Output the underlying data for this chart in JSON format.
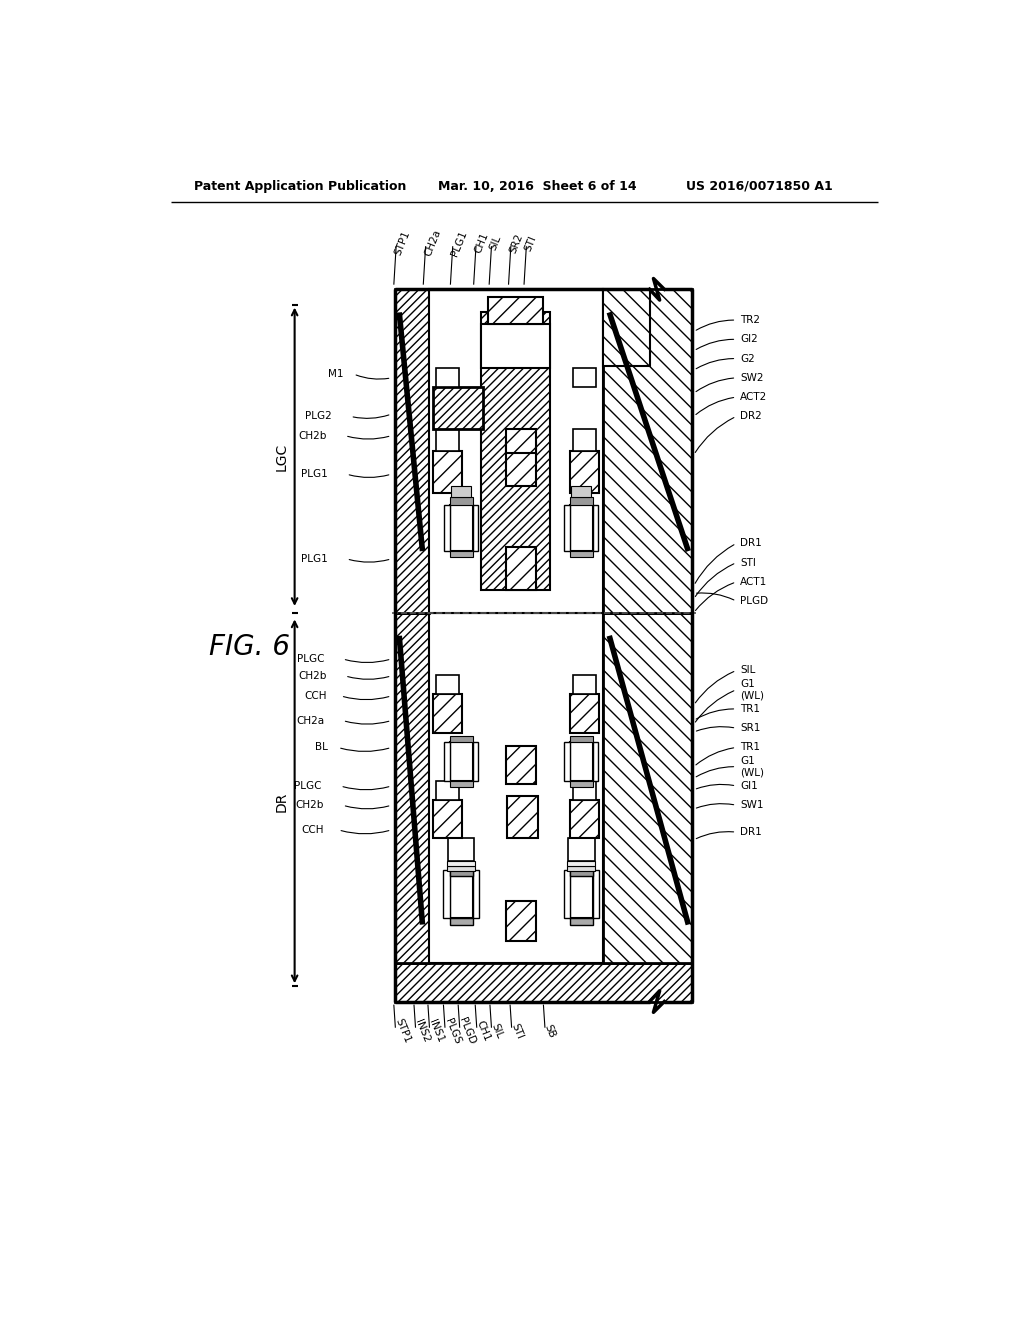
{
  "bg_color": "#ffffff",
  "header_left": "Patent Application Publication",
  "header_center": "Mar. 10, 2016  Sheet 6 of 14",
  "header_right": "US 2016/0071850 A1",
  "fig_label": "FIG. 6",
  "top_labels": [
    "STP1",
    "CH2a",
    "PLG1",
    "CH1",
    "SIL",
    "SR2",
    "STI"
  ],
  "top_lx": [
    342,
    380,
    415,
    445,
    465,
    490,
    510
  ],
  "bot_labels": [
    "STP1",
    "INS2",
    "INS1",
    "PLGS",
    "PLGD",
    "CH1",
    "SIL",
    "STI",
    "SB"
  ],
  "bot_lx": [
    342,
    368,
    386,
    406,
    425,
    447,
    466,
    492,
    535
  ],
  "left_labels_upper": [
    [
      "M1",
      340,
      1035,
      280,
      1040
    ],
    [
      "PLG2",
      340,
      988,
      265,
      985
    ],
    [
      "CH2b",
      340,
      960,
      258,
      960
    ],
    [
      "PLG1",
      340,
      910,
      260,
      910
    ],
    [
      "PLG1",
      340,
      800,
      260,
      800
    ]
  ],
  "left_labels_lower": [
    [
      "PLGC",
      340,
      670,
      255,
      670
    ],
    [
      "CH2b",
      340,
      648,
      258,
      648
    ],
    [
      "CCH",
      340,
      622,
      258,
      622
    ],
    [
      "CH2a",
      340,
      590,
      255,
      590
    ],
    [
      "BL",
      340,
      555,
      260,
      555
    ],
    [
      "PLGC",
      340,
      505,
      252,
      505
    ],
    [
      "CH2b",
      340,
      480,
      255,
      480
    ],
    [
      "CCH",
      340,
      448,
      255,
      448
    ]
  ],
  "right_labels": [
    [
      "TR2",
      730,
      1095,
      790,
      1110
    ],
    [
      "GI2",
      730,
      1070,
      790,
      1085
    ],
    [
      "G2",
      730,
      1045,
      790,
      1060
    ],
    [
      "SW2",
      730,
      1015,
      790,
      1035
    ],
    [
      "ACT2",
      730,
      985,
      790,
      1010
    ],
    [
      "DR2",
      730,
      935,
      790,
      985
    ],
    [
      "DR1",
      730,
      765,
      790,
      820
    ],
    [
      "STI",
      730,
      748,
      790,
      795
    ],
    [
      "ACT1",
      730,
      730,
      790,
      770
    ],
    [
      "PLGD",
      730,
      755,
      790,
      745
    ],
    [
      "SIL",
      730,
      610,
      790,
      655
    ],
    [
      "G1\n(WL)",
      730,
      585,
      790,
      630
    ],
    [
      "TR1",
      730,
      590,
      790,
      605
    ],
    [
      "SR1",
      730,
      575,
      790,
      580
    ],
    [
      "TR1",
      730,
      530,
      790,
      555
    ],
    [
      "G1\n(WL)",
      730,
      515,
      790,
      530
    ],
    [
      "GI1",
      730,
      500,
      790,
      505
    ],
    [
      "SW1",
      730,
      475,
      790,
      480
    ],
    [
      "DR1",
      730,
      435,
      790,
      445
    ]
  ]
}
